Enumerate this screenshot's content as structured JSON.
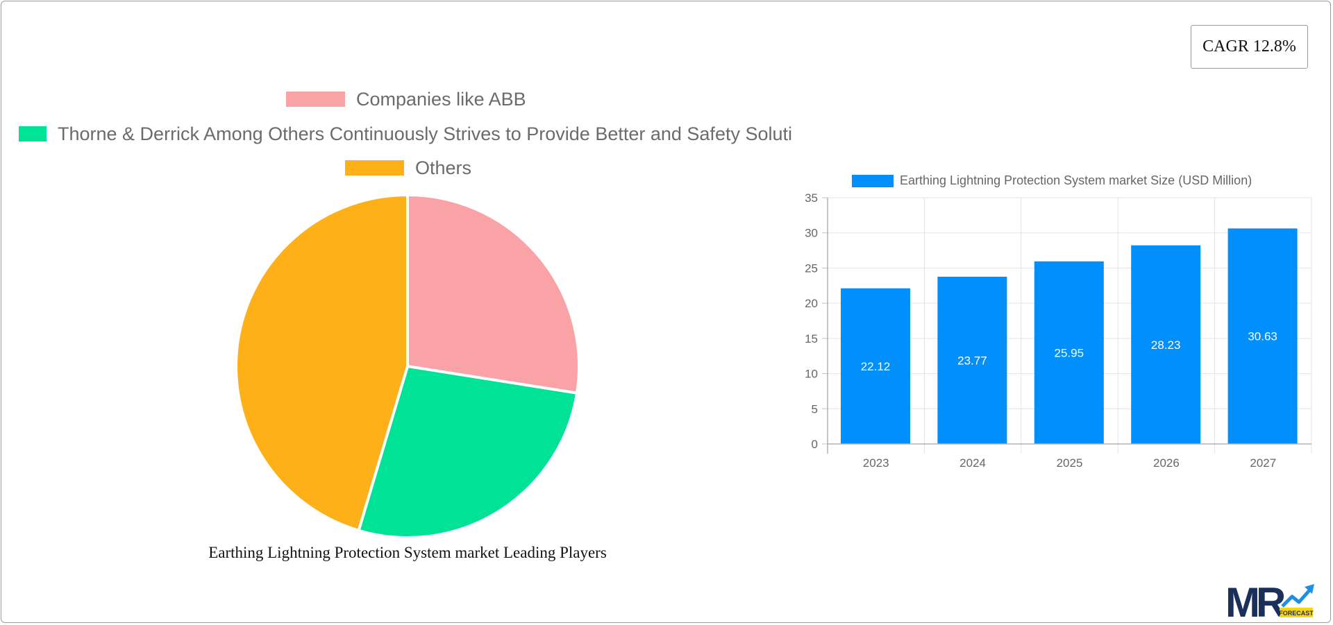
{
  "cagr": {
    "label": "CAGR 12.8%"
  },
  "pie": {
    "caption": "Earthing Lightning Protection System market Leading Players",
    "legend": [
      {
        "label": "Companies like ABB",
        "color": "#F9A3A7"
      },
      {
        "label": "Thorne & Derrick Among Others Continuously Strives to Provide Better and Safety Soluti",
        "color": "#00E396"
      },
      {
        "label": "Others",
        "color": "#FEB019"
      }
    ]
  },
  "bar": {
    "legend_label": "Earthing Lightning Protection System market  Size (USD Million)",
    "color": "#008FFB"
  },
  "logo": {
    "text": "MR",
    "badge": "FORECAST"
  },
  "chart_data": [
    {
      "type": "pie",
      "title": "Earthing Lightning Protection System market Leading Players",
      "categories": [
        "Companies like ABB",
        "Thorne & Derrick Among Others Continuously Strives to Provide Better and Safety Soluti",
        "Others"
      ],
      "values": [
        27.5,
        27.1,
        45.4
      ],
      "colors": [
        "#F9A3A7",
        "#00E396",
        "#FEB019"
      ],
      "legend_position": "top"
    },
    {
      "type": "bar",
      "title": "",
      "categories": [
        "2023",
        "2024",
        "2025",
        "2026",
        "2027"
      ],
      "series": [
        {
          "name": "Earthing Lightning Protection System market  Size (USD Million)",
          "values": [
            22.12,
            23.77,
            25.95,
            28.23,
            30.63
          ]
        }
      ],
      "xlabel": "",
      "ylabel": "",
      "ylim": [
        0,
        35
      ],
      "yticks": [
        0,
        5,
        10,
        15,
        20,
        25,
        30,
        35
      ],
      "grid": true,
      "data_labels": true,
      "legend_position": "top"
    }
  ]
}
